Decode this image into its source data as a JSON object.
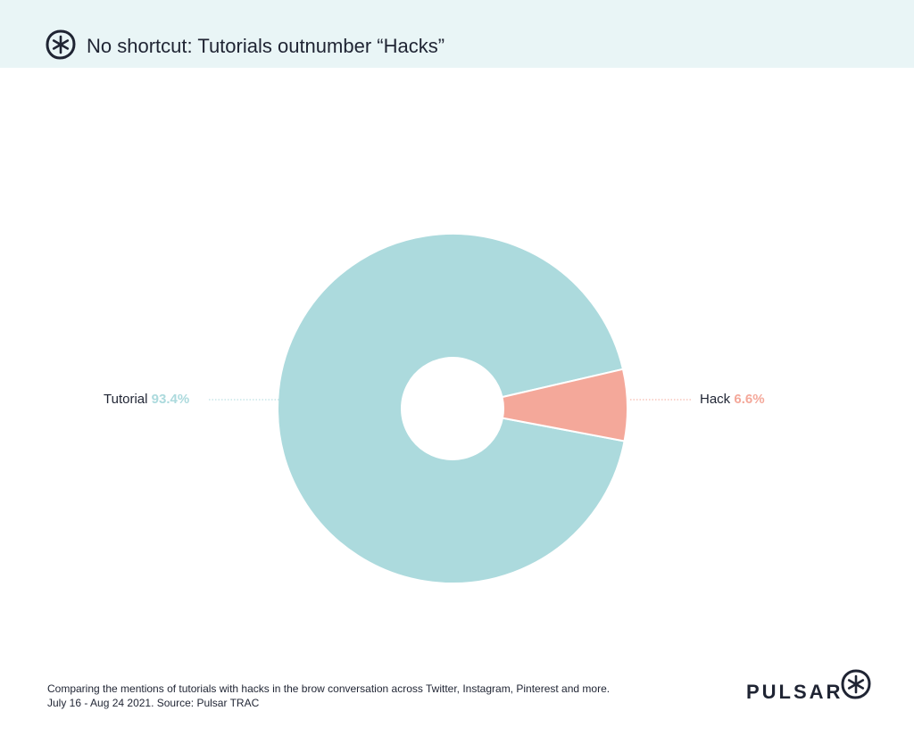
{
  "header": {
    "title": "No shortcut: Tutorials outnumber “Hacks”",
    "logo_icon": "pulsar-asterisk-icon",
    "background": "#e9f5f6"
  },
  "chart_data": {
    "type": "pie",
    "donut": true,
    "title": "No shortcut: Tutorials outnumber “Hacks”",
    "categories": [
      "Tutorial",
      "Hack"
    ],
    "values": [
      93.4,
      6.6
    ],
    "value_labels": [
      "93.4%",
      "6.6%"
    ],
    "colors": [
      "#acdadd",
      "#f4a89a"
    ],
    "legend": "none"
  },
  "footer": {
    "line1": "Comparing the mentions of tutorials with hacks in the brow conversation across Twitter, Instagram, Pinterest and more.",
    "line2": "July 16 - Aug 24 2021. Source: Pulsar TRAC",
    "brand": "PULSAR",
    "brand_icon": "pulsar-asterisk-icon"
  }
}
